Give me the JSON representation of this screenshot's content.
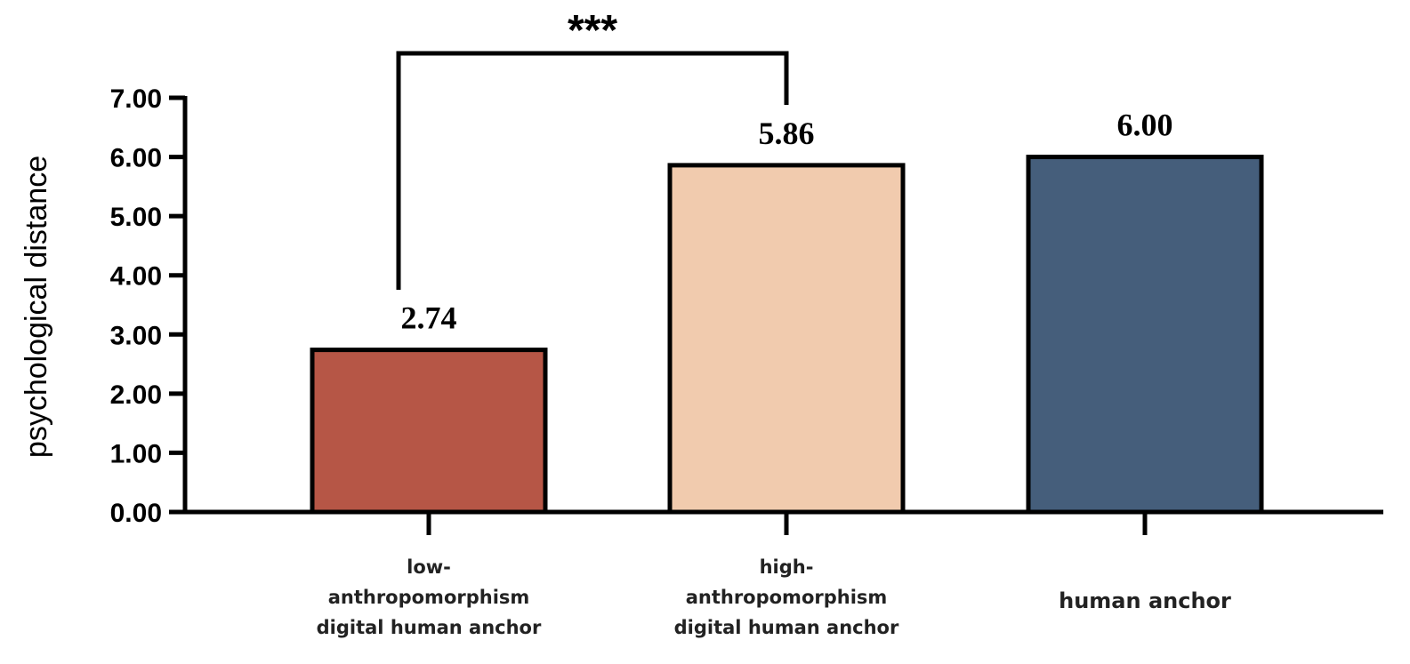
{
  "chart_data": {
    "type": "bar",
    "ylabel": "psychological  distance",
    "xlabel": "",
    "ylim": [
      0,
      7
    ],
    "yticks": [
      "0.00",
      "1.00",
      "2.00",
      "3.00",
      "4.00",
      "5.00",
      "6.00",
      "7.00"
    ],
    "categories": [
      [
        "low-",
        "anthropomorphism",
        "digital human anchor"
      ],
      [
        "high-",
        "anthropomorphism",
        "digital human anchor"
      ],
      [
        "human anchor"
      ]
    ],
    "values": [
      2.74,
      5.86,
      6.0
    ],
    "value_labels": [
      "2.74",
      "5.86",
      "6.00"
    ],
    "colors": [
      "#b65646",
      "#f1cbae",
      "#455e7b"
    ],
    "significance": {
      "label": "***",
      "from_category": 0,
      "to_category": 1
    },
    "grid": false
  }
}
